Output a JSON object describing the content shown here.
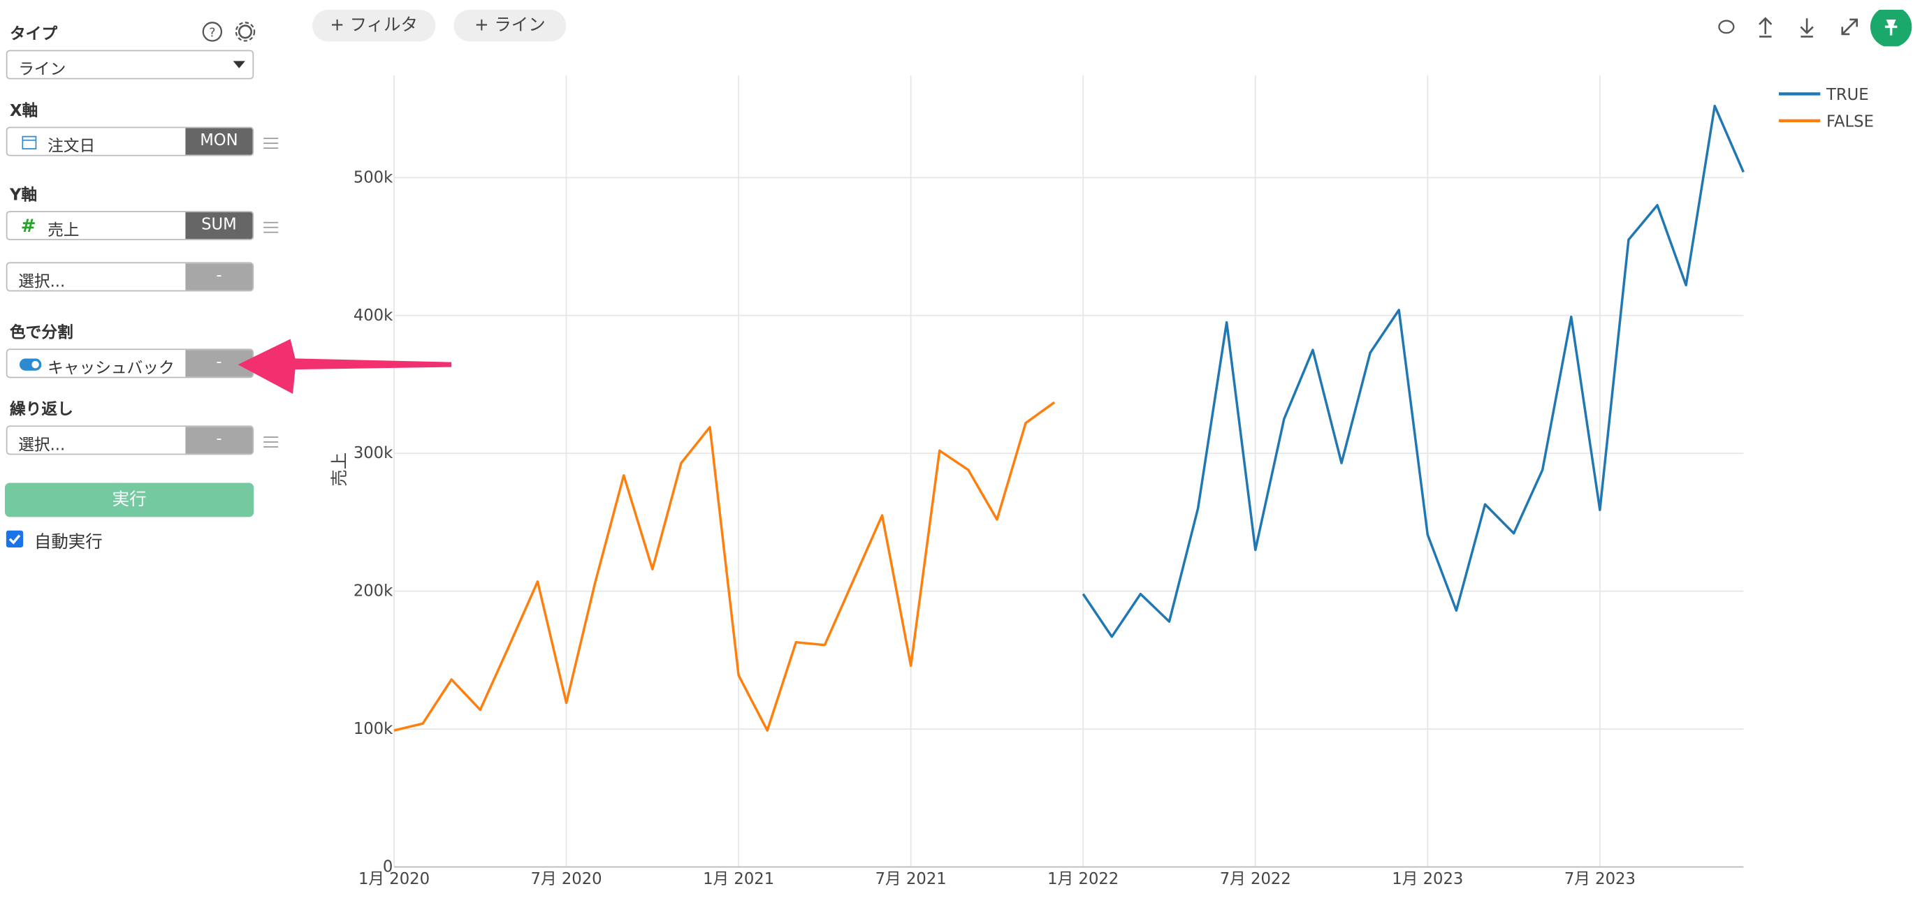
{
  "sidebar": {
    "type_label": "タイプ",
    "type_value": "ライン",
    "x_label": "X軸",
    "x_field": "注文日",
    "x_agg": "MON",
    "y_label": "Y軸",
    "y_field": "売上",
    "y_agg": "SUM",
    "y2_field": "選択...",
    "y2_agg": "-",
    "color_label": "色で分割",
    "color_field": "キャッシュバック",
    "color_agg": "-",
    "repeat_label": "繰り返し",
    "repeat_field": "選択...",
    "repeat_agg": "-",
    "run": "実行",
    "auto_run": "自動実行"
  },
  "toolbar": {
    "filter": "+ フィルタ",
    "line": "+ ライン"
  },
  "chart_data": {
    "type": "line",
    "y_label": "売上",
    "x": [
      "2020-01",
      "2020-02",
      "2020-03",
      "2020-04",
      "2020-05",
      "2020-06",
      "2020-07",
      "2020-08",
      "2020-09",
      "2020-10",
      "2020-11",
      "2020-12",
      "2021-01",
      "2021-02",
      "2021-03",
      "2021-04",
      "2021-05",
      "2021-06",
      "2021-07",
      "2021-08",
      "2021-09",
      "2021-10",
      "2021-11",
      "2021-12",
      "2022-01",
      "2022-02",
      "2022-03",
      "2022-04",
      "2022-05",
      "2022-06",
      "2022-07",
      "2022-08",
      "2022-09",
      "2022-10",
      "2022-11",
      "2022-12",
      "2023-01",
      "2023-02",
      "2023-03",
      "2023-04",
      "2023-05",
      "2023-06",
      "2023-07",
      "2023-08",
      "2023-09",
      "2023-10",
      "2023-11",
      "2023-12"
    ],
    "series": [
      {
        "name": "TRUE",
        "color": "#1f77b4",
        "values": [
          null,
          null,
          null,
          null,
          null,
          null,
          null,
          null,
          null,
          null,
          null,
          null,
          null,
          null,
          null,
          null,
          null,
          null,
          null,
          null,
          null,
          null,
          null,
          null,
          198000,
          167000,
          198000,
          178000,
          260000,
          395000,
          230000,
          325000,
          375000,
          293000,
          373000,
          404000,
          241000,
          186000,
          263000,
          242000,
          288000,
          399000,
          259000,
          455000,
          480000,
          422000,
          552000,
          504000
        ]
      },
      {
        "name": "FALSE",
        "color": "#ff7f0e",
        "values": [
          99000,
          104000,
          136000,
          114000,
          160000,
          207000,
          119000,
          206000,
          284000,
          216000,
          293000,
          319000,
          139000,
          99000,
          163000,
          161000,
          208000,
          255000,
          146000,
          302000,
          288000,
          252000,
          322000,
          337000,
          null,
          null,
          null,
          null,
          null,
          null,
          null,
          null,
          null,
          null,
          null,
          null,
          null,
          null,
          null,
          null,
          null,
          null,
          null,
          null,
          null,
          null,
          null,
          null
        ]
      }
    ],
    "xlim": [
      "2020-01",
      "2023-12"
    ],
    "xticks": [
      {
        "value": "2020-01",
        "label": "1月 2020"
      },
      {
        "value": "2020-07",
        "label": "7月 2020"
      },
      {
        "value": "2021-01",
        "label": "1月 2021"
      },
      {
        "value": "2021-07",
        "label": "7月 2021"
      },
      {
        "value": "2022-01",
        "label": "1月 2022"
      },
      {
        "value": "2022-07",
        "label": "7月 2022"
      },
      {
        "value": "2023-01",
        "label": "1月 2023"
      },
      {
        "value": "2023-07",
        "label": "7月 2023"
      }
    ],
    "ylim": [
      0,
      574000
    ],
    "yticks": [
      0,
      {
        "value": 100000,
        "label": "100k"
      },
      {
        "value": 200000,
        "label": "200k"
      },
      {
        "value": 300000,
        "label": "300k"
      },
      {
        "value": 400000,
        "label": "400k"
      },
      {
        "value": 500000,
        "label": "500k"
      }
    ],
    "grid": true,
    "legend": "top-right"
  }
}
